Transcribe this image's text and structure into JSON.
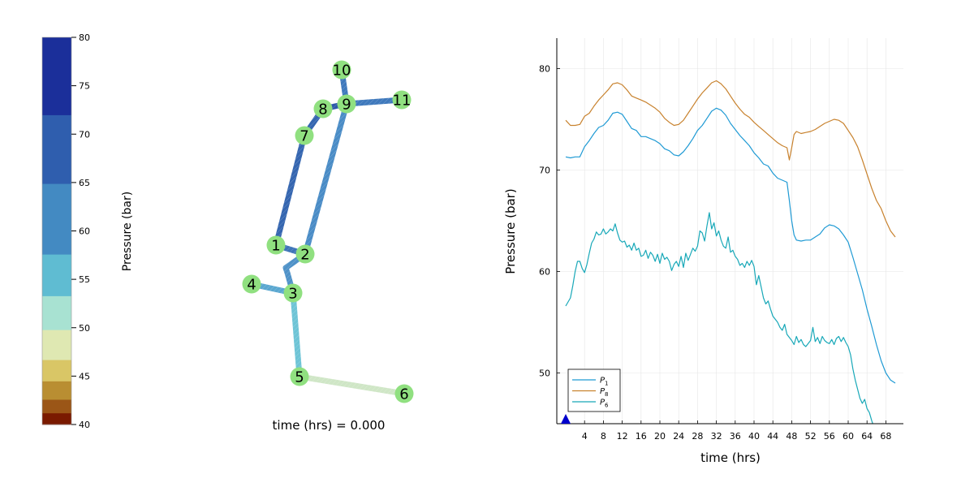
{
  "colorbar": {
    "label": "Pressure (bar)",
    "ticks": [
      40,
      45,
      50,
      55,
      60,
      65,
      70,
      75,
      80
    ],
    "bands": [
      {
        "from": 40.0,
        "to": 41.2,
        "color": "#7a1a00"
      },
      {
        "from": 41.2,
        "to": 42.6,
        "color": "#9b5617"
      },
      {
        "from": 42.6,
        "to": 44.5,
        "color": "#b98e32"
      },
      {
        "from": 44.5,
        "to": 46.7,
        "color": "#d9c666"
      },
      {
        "from": 46.7,
        "to": 49.8,
        "color": "#dfe8b2"
      },
      {
        "from": 49.8,
        "to": 53.3,
        "color": "#a8e2d2"
      },
      {
        "from": 53.3,
        "to": 57.6,
        "color": "#5fbcd2"
      },
      {
        "from": 57.6,
        "to": 64.9,
        "color": "#438ac2"
      },
      {
        "from": 64.9,
        "to": 72.0,
        "color": "#2f5eae"
      },
      {
        "from": 72.0,
        "to": 80.0,
        "color": "#1b2f9a"
      }
    ]
  },
  "network": {
    "time_label": "time (hrs) = 0.000",
    "node_color": "#90e080",
    "nodes": [
      {
        "id": "1"
      },
      {
        "id": "2"
      },
      {
        "id": "3"
      },
      {
        "id": "4"
      },
      {
        "id": "5"
      },
      {
        "id": "6"
      },
      {
        "id": "7"
      },
      {
        "id": "8"
      },
      {
        "id": "9"
      },
      {
        "id": "10"
      },
      {
        "id": "11"
      }
    ],
    "pipes": [
      {
        "from": "1",
        "to": "7",
        "color": "#3566b0"
      },
      {
        "from": "7",
        "to": "8",
        "color": "#3566b0"
      },
      {
        "from": "8",
        "to": "9",
        "color": "#2d58aa"
      },
      {
        "from": "9",
        "to": "10",
        "color": "#3f79bc"
      },
      {
        "from": "9",
        "to": "11",
        "color": "#3f79bc"
      },
      {
        "from": "9",
        "to": "2",
        "color": "#4a8cc6"
      },
      {
        "from": "1",
        "to": "2",
        "color": "#3d74b8"
      },
      {
        "from": "2",
        "to": "3",
        "color": "#4f92c8",
        "via": "bend"
      },
      {
        "from": "4",
        "to": "3",
        "color": "#5aa7d0"
      },
      {
        "from": "3",
        "to": "5",
        "color": "#6ec4d6"
      },
      {
        "from": "5",
        "to": "6",
        "color": "#cfe6c6"
      }
    ]
  },
  "chart_data": {
    "type": "line",
    "xlabel": "time (hrs)",
    "ylabel": "Pressure (bar)",
    "xlim": [
      0,
      70
    ],
    "ylim": [
      45,
      83
    ],
    "xticks": [
      4,
      8,
      12,
      16,
      20,
      24,
      28,
      32,
      36,
      40,
      44,
      48,
      52,
      56,
      60,
      64,
      68
    ],
    "yticks": [
      50,
      60,
      70,
      80
    ],
    "grid": true,
    "legend_position": "bottom-left",
    "marker": {
      "x": 0,
      "y": 45,
      "shape": "triangle",
      "color": "#0000cc"
    },
    "series": [
      {
        "name": "P1",
        "label_main": "P",
        "label_sub": "1",
        "color": "#1f9ad4",
        "x": [
          0,
          1,
          2,
          3,
          4,
          5,
          6,
          7,
          8,
          9,
          10,
          11,
          12,
          13,
          14,
          15,
          16,
          17,
          18,
          19,
          20,
          21,
          22,
          23,
          24,
          25,
          26,
          27,
          28,
          29,
          30,
          31,
          32,
          33,
          34,
          35,
          36,
          37,
          38,
          39,
          40,
          41,
          42,
          43,
          44,
          45,
          46,
          47,
          47.5,
          48,
          48.5,
          49,
          50,
          51,
          52,
          53,
          54,
          55,
          56,
          57,
          58,
          59,
          60,
          61,
          62,
          63,
          64,
          65,
          66,
          67,
          68,
          69,
          70
        ],
        "y": [
          71.3,
          71.2,
          71.3,
          71.3,
          72.3,
          72.9,
          73.6,
          74.2,
          74.4,
          74.9,
          75.6,
          75.7,
          75.5,
          74.8,
          74.1,
          73.9,
          73.3,
          73.3,
          73.1,
          72.9,
          72.6,
          72.1,
          71.9,
          71.5,
          71.4,
          71.8,
          72.4,
          73.1,
          73.9,
          74.4,
          75.1,
          75.8,
          76.1,
          75.9,
          75.4,
          74.6,
          74.0,
          73.4,
          72.9,
          72.4,
          71.7,
          71.2,
          70.6,
          70.4,
          69.7,
          69.2,
          69.0,
          68.8,
          67.0,
          65.0,
          63.6,
          63.1,
          63.0,
          63.1,
          63.1,
          63.4,
          63.7,
          64.3,
          64.6,
          64.5,
          64.2,
          63.6,
          62.9,
          61.4,
          59.8,
          58.2,
          56.3,
          54.6,
          52.8,
          51.2,
          50.0,
          49.3,
          49.0
        ]
      },
      {
        "name": "P8",
        "label_main": "P",
        "label_sub": "8",
        "color": "#c8822e",
        "x": [
          0,
          1,
          2,
          3,
          4,
          5,
          6,
          7,
          8,
          9,
          10,
          11,
          12,
          13,
          14,
          15,
          16,
          17,
          18,
          19,
          20,
          21,
          22,
          23,
          24,
          25,
          26,
          27,
          28,
          29,
          30,
          31,
          32,
          33,
          34,
          35,
          36,
          37,
          38,
          39,
          40,
          41,
          42,
          43,
          44,
          45,
          46,
          47,
          47.5,
          48,
          48.5,
          49,
          50,
          51,
          52,
          53,
          54,
          55,
          56,
          57,
          58,
          59,
          60,
          61,
          62,
          63,
          64,
          65,
          66,
          67,
          68,
          69,
          70
        ],
        "y": [
          74.9,
          74.4,
          74.4,
          74.5,
          75.3,
          75.6,
          76.3,
          76.9,
          77.4,
          77.9,
          78.5,
          78.6,
          78.4,
          77.9,
          77.3,
          77.1,
          76.9,
          76.7,
          76.4,
          76.1,
          75.7,
          75.1,
          74.7,
          74.4,
          74.5,
          74.9,
          75.6,
          76.3,
          77.0,
          77.6,
          78.1,
          78.6,
          78.8,
          78.5,
          78.0,
          77.3,
          76.6,
          76.0,
          75.5,
          75.2,
          74.7,
          74.3,
          73.9,
          73.5,
          73.1,
          72.7,
          72.4,
          72.2,
          71.0,
          72.2,
          73.5,
          73.8,
          73.6,
          73.7,
          73.8,
          74.0,
          74.3,
          74.6,
          74.8,
          75.0,
          74.9,
          74.6,
          73.9,
          73.2,
          72.3,
          71.0,
          69.6,
          68.2,
          67.0,
          66.2,
          65.0,
          64.0,
          63.4
        ]
      },
      {
        "name": "P6",
        "label_main": "P",
        "label_sub": "6",
        "color": "#18a8b8",
        "x": [
          0,
          0.5,
          1,
          1.5,
          2,
          2.5,
          3,
          3.5,
          4,
          4.5,
          5,
          5.5,
          6,
          6.5,
          7,
          7.5,
          8,
          8.5,
          9,
          9.5,
          10,
          10.5,
          11,
          11.5,
          12,
          12.5,
          13,
          13.5,
          14,
          14.5,
          15,
          15.5,
          16,
          16.5,
          17,
          17.5,
          18,
          18.5,
          19,
          19.5,
          20,
          20.5,
          21,
          21.5,
          22,
          22.5,
          23,
          23.5,
          24,
          24.5,
          25,
          25.5,
          26,
          26.5,
          27,
          27.5,
          28,
          28.5,
          29,
          29.5,
          30,
          30.5,
          31,
          31.5,
          32,
          32.5,
          33,
          33.5,
          34,
          34.5,
          35,
          35.5,
          36,
          36.5,
          37,
          37.5,
          38,
          38.5,
          39,
          39.5,
          40,
          40.5,
          41,
          41.5,
          42,
          42.5,
          43,
          43.5,
          44,
          44.5,
          45,
          45.5,
          46,
          46.5,
          47,
          47.5,
          48,
          48.5,
          49,
          49.5,
          50,
          50.5,
          51,
          51.5,
          52,
          52.5,
          53,
          53.5,
          54,
          54.5,
          55,
          55.5,
          56,
          56.5,
          57,
          57.5,
          58,
          58.5,
          59,
          59.5,
          60,
          60.5,
          61,
          61.5,
          62,
          62.5,
          63,
          63.5,
          64,
          64.5,
          65,
          65.5,
          66
        ],
        "y": [
          56.6,
          57.0,
          57.4,
          58.6,
          60.0,
          61.0,
          61.0,
          60.3,
          59.9,
          60.7,
          61.8,
          62.8,
          63.2,
          63.9,
          63.6,
          63.7,
          64.2,
          63.7,
          63.9,
          64.2,
          64.0,
          64.7,
          63.8,
          63.1,
          62.9,
          63.0,
          62.4,
          62.6,
          62.1,
          62.8,
          62.1,
          62.3,
          61.5,
          61.6,
          62.1,
          61.3,
          61.9,
          61.6,
          61.0,
          61.7,
          60.8,
          61.8,
          61.2,
          61.4,
          61.0,
          60.1,
          60.7,
          61.0,
          60.5,
          61.5,
          60.4,
          61.8,
          61.1,
          61.7,
          62.3,
          62.0,
          62.5,
          64.0,
          63.8,
          63.0,
          64.5,
          65.8,
          64.2,
          64.8,
          63.5,
          64.0,
          63.1,
          62.5,
          62.3,
          63.4,
          61.9,
          62.1,
          61.5,
          61.2,
          60.6,
          60.8,
          60.4,
          61.0,
          60.6,
          61.1,
          60.5,
          58.7,
          59.6,
          58.5,
          57.4,
          56.8,
          57.1,
          56.3,
          55.6,
          55.3,
          55.0,
          54.5,
          54.2,
          54.8,
          53.8,
          53.5,
          53.2,
          52.8,
          53.6,
          53.0,
          53.3,
          52.8,
          52.6,
          52.9,
          53.2,
          54.5,
          53.1,
          53.5,
          52.9,
          53.6,
          53.2,
          53.0,
          52.9,
          53.3,
          52.8,
          53.4,
          53.6,
          53.1,
          53.5,
          53.0,
          52.6,
          51.8,
          50.4,
          49.3,
          48.4,
          47.5,
          47.0,
          47.4,
          46.5,
          46.1,
          45.3,
          44.6,
          43.8
        ]
      }
    ]
  }
}
